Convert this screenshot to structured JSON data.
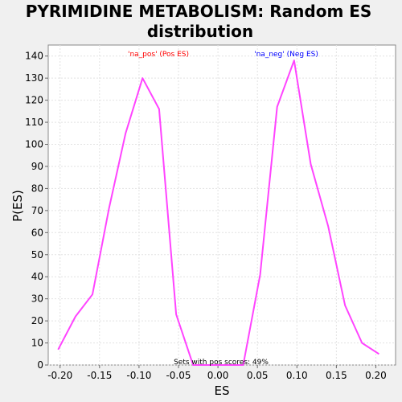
{
  "chart_data": {
    "type": "line",
    "title_lines": [
      "PYRIMIDINE METABOLISM: Random ES",
      "distribution"
    ],
    "xlabel": "ES",
    "ylabel": "P(ES)",
    "xlim": [
      -0.215,
      0.225
    ],
    "ylim": [
      0,
      145
    ],
    "x_ticks": [
      -0.2,
      -0.15,
      -0.1,
      -0.05,
      0.0,
      0.05,
      0.1,
      0.15,
      0.2
    ],
    "x_tick_labels": [
      "-0.20",
      "-0.15",
      "-0.10",
      "-0.05",
      "0.00",
      "0.05",
      "0.10",
      "0.15",
      "0.20"
    ],
    "y_ticks": [
      0,
      10,
      20,
      30,
      40,
      50,
      60,
      70,
      80,
      90,
      100,
      110,
      120,
      130,
      140
    ],
    "y_tick_labels": [
      "0",
      "10",
      "20",
      "30",
      "40",
      "50",
      "60",
      "70",
      "80",
      "90",
      "100",
      "110",
      "120",
      "130",
      "140"
    ],
    "grid": true,
    "series": [
      {
        "color": "#ff44ff",
        "x": [
          -0.2025,
          -0.1805,
          -0.159,
          -0.138,
          -0.117,
          -0.0955,
          -0.0745,
          -0.053,
          -0.0315,
          -0.0105,
          0.0105,
          0.032,
          0.0535,
          0.075,
          0.0965,
          0.1175,
          0.1395,
          0.161,
          0.1825,
          0.204
        ],
        "y": [
          7,
          22,
          32,
          71,
          105,
          130,
          116,
          23,
          0,
          0,
          0,
          0,
          41,
          117,
          138,
          91,
          63,
          27,
          10,
          5
        ]
      }
    ],
    "annotations": {
      "pos_label": "'na_pos' (Pos ES)",
      "pos_color": "#ff0000",
      "neg_label": "'na_neg' (Neg ES)",
      "neg_color": "#0000ff",
      "footer": "Sets with pos scores: 49%"
    }
  }
}
